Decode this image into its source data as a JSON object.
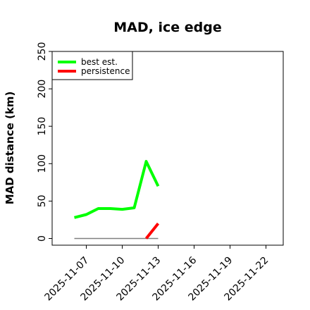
{
  "chart_data": {
    "type": "line",
    "title": "MAD, ice edge",
    "xlabel": "",
    "ylabel": "MAD distance (km)",
    "ylim": [
      0,
      250
    ],
    "yticks": [
      0,
      50,
      100,
      150,
      200,
      250
    ],
    "xlim": [
      "2025-11-04",
      "2025-11-24"
    ],
    "xticks": [
      "2025-11-07",
      "2025-11-10",
      "2025-11-13",
      "2025-11-16",
      "2025-11-19",
      "2025-11-22"
    ],
    "grid": false,
    "legend_placement": "top-left",
    "series": [
      {
        "name": "best est.",
        "color": "#00ff00",
        "x": [
          "2025-11-06",
          "2025-11-07",
          "2025-11-08",
          "2025-11-09",
          "2025-11-10",
          "2025-11-11",
          "2025-11-12",
          "2025-11-13"
        ],
        "values": [
          28,
          32,
          40,
          40,
          39,
          41,
          103,
          70
        ]
      },
      {
        "name": "persistence",
        "color": "#ff0000",
        "x": [
          "2025-11-12",
          "2025-11-13"
        ],
        "values": [
          0,
          20
        ]
      }
    ],
    "reference_line": {
      "color": "#808080",
      "x": [
        "2025-11-06",
        "2025-11-13"
      ],
      "value": 0
    }
  }
}
